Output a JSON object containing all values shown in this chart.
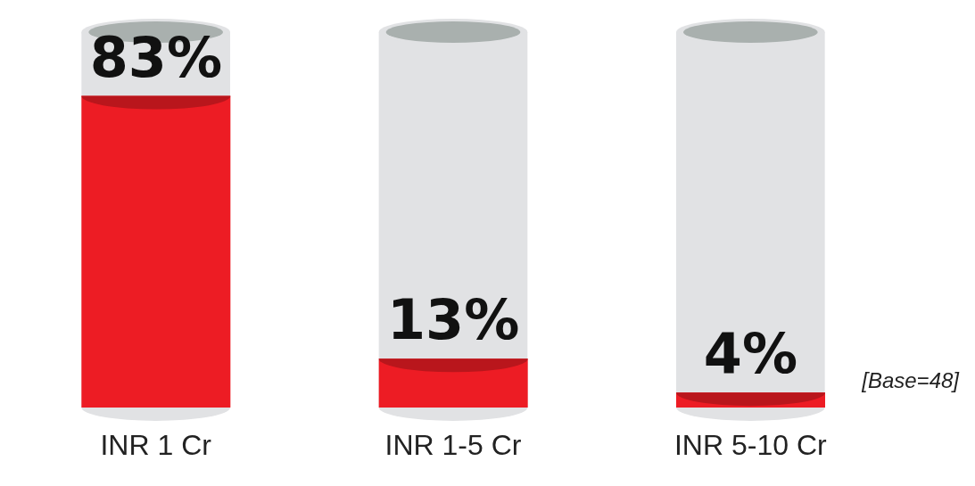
{
  "chart_data": {
    "type": "bar",
    "categories": [
      "INR 1 Cr",
      "INR 1-5 Cr",
      "INR 5-10 Cr"
    ],
    "values": [
      83,
      13,
      4
    ],
    "value_labels": [
      "83%",
      "13%",
      "4%"
    ],
    "color": "#ed1c24",
    "tick_labels": "x",
    "grid": false,
    "legend": false,
    "annotations": [
      "[Base=48]"
    ]
  }
}
